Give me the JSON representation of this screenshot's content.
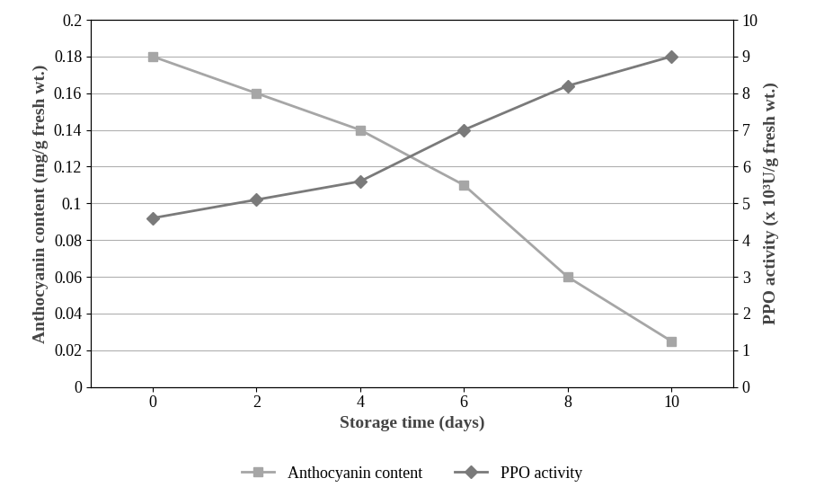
{
  "chart_data": {
    "type": "line",
    "x_label": "Storage time (days)",
    "y_label": "Anthocyanin content (mg/g fresh wt.)",
    "y2_label": "PPO activity (x 10³U/g fresh wt.)",
    "categories": [
      "0",
      "2",
      "4",
      "6",
      "8",
      "10"
    ],
    "ylim": [
      0,
      0.2
    ],
    "yticks": [
      0,
      0.02,
      0.04,
      0.06,
      0.08,
      0.1,
      0.12,
      0.14,
      0.16,
      0.18,
      0.2
    ],
    "y2lim": [
      0,
      10
    ],
    "y2ticks": [
      0,
      1,
      2,
      3,
      4,
      5,
      6,
      7,
      8,
      9,
      10
    ],
    "grid": true,
    "legend": "lower center",
    "series": [
      {
        "name": "Anthocyanin content",
        "color": "#a6a6a6",
        "marker": "square",
        "line_style": "solid",
        "values": [
          0.18,
          0.16,
          0.14,
          0.11,
          0.06,
          0.025
        ]
      },
      {
        "name": "PPO activity",
        "color": "#7a7a7a",
        "marker": "diamond",
        "line_style": "solid",
        "axis": "y2",
        "values": [
          4.6,
          5.1,
          5.6,
          7.0,
          8.2,
          9.0
        ]
      }
    ]
  }
}
